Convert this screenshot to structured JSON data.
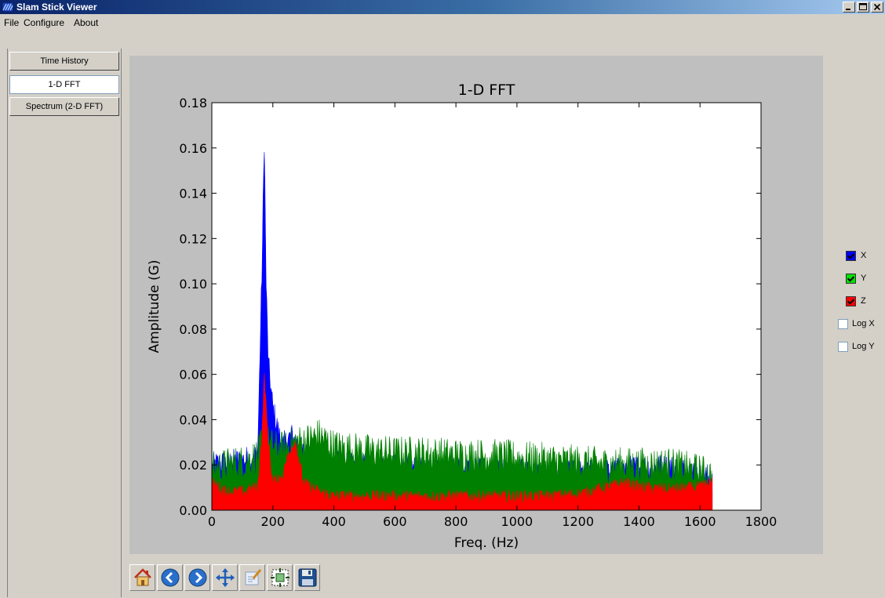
{
  "window": {
    "title": "Slam Stick Viewer",
    "buttons": [
      "minimize",
      "maximize",
      "close"
    ]
  },
  "menu": [
    "File",
    "Configure",
    "About"
  ],
  "tabs": [
    {
      "label": "Time History",
      "active": false
    },
    {
      "label": "1-D FFT",
      "active": true
    },
    {
      "label": "Spectrum (2-D FFT)",
      "active": false
    }
  ],
  "controls": {
    "channels": [
      {
        "label": "X",
        "checked": true,
        "color": "#0000ff"
      },
      {
        "label": "Y",
        "checked": true,
        "color": "#00c000"
      },
      {
        "label": "Z",
        "checked": true,
        "color": "#ff0000"
      }
    ],
    "log_x": {
      "label": "Log X",
      "checked": false
    },
    "log_y": {
      "label": "Log Y",
      "checked": false
    }
  },
  "toolbar": {
    "icons": [
      "home-icon",
      "back-arrow-icon",
      "forward-arrow-icon",
      "pan-icon",
      "configure-subplots-icon",
      "zoom-to-rect-icon",
      "save-icon"
    ]
  },
  "chart_data": {
    "type": "area",
    "title": "1-D FFT",
    "xlabel": "Freq. (Hz)",
    "ylabel": "Amplitude (G)",
    "xlim": [
      0,
      1800
    ],
    "ylim": [
      0,
      0.18
    ],
    "x_ticks": [
      "0",
      "200",
      "400",
      "600",
      "800",
      "1000",
      "1200",
      "1400",
      "1600",
      "1800"
    ],
    "y_ticks": [
      "0.00",
      "0.02",
      "0.04",
      "0.06",
      "0.08",
      "0.10",
      "0.12",
      "0.14",
      "0.16",
      "0.18"
    ],
    "grid": false,
    "x": [
      0,
      50,
      100,
      150,
      165,
      172,
      178,
      185,
      200,
      230,
      260,
      275,
      300,
      350,
      400,
      500,
      600,
      700,
      800,
      900,
      1000,
      1100,
      1200,
      1300,
      1350,
      1400,
      1500,
      1600,
      1640
    ],
    "series": [
      {
        "name": "X",
        "color": "#0000ff",
        "values": [
          0.02,
          0.021,
          0.022,
          0.024,
          0.11,
          0.164,
          0.1,
          0.065,
          0.045,
          0.028,
          0.033,
          0.03,
          0.025,
          0.022,
          0.021,
          0.02,
          0.019,
          0.018,
          0.018,
          0.017,
          0.017,
          0.016,
          0.016,
          0.017,
          0.018,
          0.019,
          0.019,
          0.016,
          0.014
        ]
      },
      {
        "name": "Y",
        "color": "#008000",
        "values": [
          0.018,
          0.02,
          0.021,
          0.024,
          0.03,
          0.033,
          0.032,
          0.03,
          0.028,
          0.027,
          0.029,
          0.03,
          0.03,
          0.033,
          0.028,
          0.026,
          0.025,
          0.025,
          0.024,
          0.024,
          0.023,
          0.022,
          0.021,
          0.02,
          0.02,
          0.02,
          0.02,
          0.017,
          0.015
        ]
      },
      {
        "name": "Z",
        "color": "#ff0000",
        "values": [
          0.012,
          0.008,
          0.008,
          0.01,
          0.035,
          0.06,
          0.045,
          0.03,
          0.012,
          0.015,
          0.028,
          0.03,
          0.012,
          0.008,
          0.006,
          0.006,
          0.006,
          0.006,
          0.006,
          0.006,
          0.006,
          0.006,
          0.007,
          0.01,
          0.012,
          0.01,
          0.009,
          0.01,
          0.012
        ]
      }
    ]
  }
}
